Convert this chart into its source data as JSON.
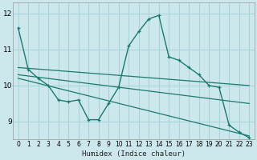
{
  "background_color": "#cce8ed",
  "grid_color": "#aad4db",
  "line_color": "#1a7a6e",
  "xlabel": "Humidex (Indice chaleur)",
  "xlim": [
    -0.5,
    23.5
  ],
  "ylim": [
    8.5,
    12.3
  ],
  "yticks": [
    9,
    10,
    11,
    12
  ],
  "xticks": [
    0,
    1,
    2,
    3,
    4,
    5,
    6,
    7,
    8,
    9,
    10,
    11,
    12,
    13,
    14,
    15,
    16,
    17,
    18,
    19,
    20,
    21,
    22,
    23
  ],
  "curve_x": [
    0,
    1,
    2,
    3,
    4,
    5,
    6,
    7,
    8,
    9,
    10,
    11,
    12,
    13,
    14,
    15,
    16,
    17,
    18,
    19,
    20,
    21,
    22,
    23
  ],
  "curve_y": [
    11.6,
    10.45,
    10.2,
    10.0,
    9.6,
    9.55,
    9.6,
    9.05,
    9.05,
    9.5,
    9.95,
    11.1,
    11.5,
    11.85,
    11.95,
    10.8,
    10.7,
    10.5,
    10.3,
    10.0,
    9.95,
    8.9,
    8.7,
    8.55
  ],
  "line1_x": [
    0,
    23
  ],
  "line1_y": [
    10.5,
    10.0
  ],
  "line2_x": [
    0,
    23
  ],
  "line2_y": [
    10.3,
    9.5
  ],
  "line3_x": [
    0,
    23
  ],
  "line3_y": [
    10.2,
    8.6
  ]
}
